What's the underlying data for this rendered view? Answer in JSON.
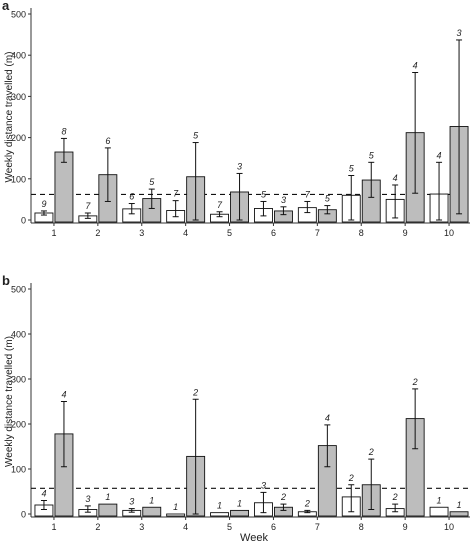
{
  "xlabel": "Week",
  "chart_data": [
    {
      "panel_label": "a",
      "type": "bar",
      "ylabel": "Weekly distance travelled (m)",
      "ylim": [
        0,
        500
      ],
      "yticks": [
        0,
        100,
        200,
        300,
        400,
        500
      ],
      "categories": [
        "1",
        "2",
        "3",
        "4",
        "5",
        "6",
        "7",
        "8",
        "9",
        "10"
      ],
      "reference_line": 62,
      "series": [
        {
          "fill": "#ffffff",
          "values": [
            17,
            10,
            27,
            23,
            14,
            28,
            30,
            60,
            50,
            63
          ],
          "error_low": [
            12,
            4,
            15,
            8,
            8,
            10,
            18,
            0,
            5,
            0
          ],
          "error_high": [
            22,
            17,
            40,
            47,
            20,
            45,
            45,
            108,
            85,
            140
          ],
          "n_labels": [
            "9",
            "7",
            "6",
            "7",
            "7",
            "5",
            "7",
            "5",
            "4",
            "4"
          ]
        },
        {
          "fill": "#bdbdbd",
          "values": [
            165,
            110,
            52,
            105,
            68,
            22,
            25,
            97,
            212,
            227
          ],
          "error_low": [
            140,
            45,
            28,
            0,
            0,
            13,
            15,
            55,
            65,
            15
          ],
          "error_high": [
            198,
            175,
            75,
            188,
            113,
            32,
            35,
            140,
            358,
            437
          ],
          "n_labels": [
            "8",
            "6",
            "5",
            "5",
            "3",
            "3",
            "5",
            "5",
            "4",
            "3"
          ]
        }
      ],
      "grid": false,
      "legend": "none"
    },
    {
      "panel_label": "b",
      "type": "bar",
      "ylabel": "Weekly distance travelled (m)",
      "ylim": [
        0,
        500
      ],
      "yticks": [
        0,
        100,
        200,
        300,
        400,
        500
      ],
      "categories": [
        "1",
        "2",
        "3",
        "4",
        "5",
        "6",
        "7",
        "8",
        "9",
        "10"
      ],
      "reference_line": 57,
      "series": [
        {
          "fill": "#ffffff",
          "values": [
            20,
            10,
            8,
            0,
            3,
            25,
            5,
            38,
            12,
            15
          ],
          "error_low": [
            10,
            4,
            4,
            0,
            3,
            3,
            3,
            5,
            5,
            15
          ],
          "error_high": [
            30,
            18,
            12,
            0,
            3,
            48,
            8,
            65,
            22,
            15
          ],
          "n_labels": [
            "4",
            "3",
            "3",
            "1",
            "1",
            "3",
            "2",
            "2",
            "2",
            "1"
          ]
        },
        {
          "fill": "#bdbdbd",
          "values": [
            178,
            22,
            15,
            128,
            8,
            15,
            152,
            65,
            212,
            5
          ],
          "error_low": [
            105,
            22,
            15,
            0,
            8,
            8,
            105,
            10,
            145,
            5
          ],
          "error_high": [
            250,
            22,
            15,
            255,
            8,
            22,
            198,
            122,
            278,
            5
          ],
          "n_labels": [
            "4",
            "1",
            "1",
            "2",
            "1",
            "2",
            "4",
            "2",
            "2",
            "1"
          ]
        }
      ],
      "grid": false,
      "legend": "none"
    }
  ]
}
